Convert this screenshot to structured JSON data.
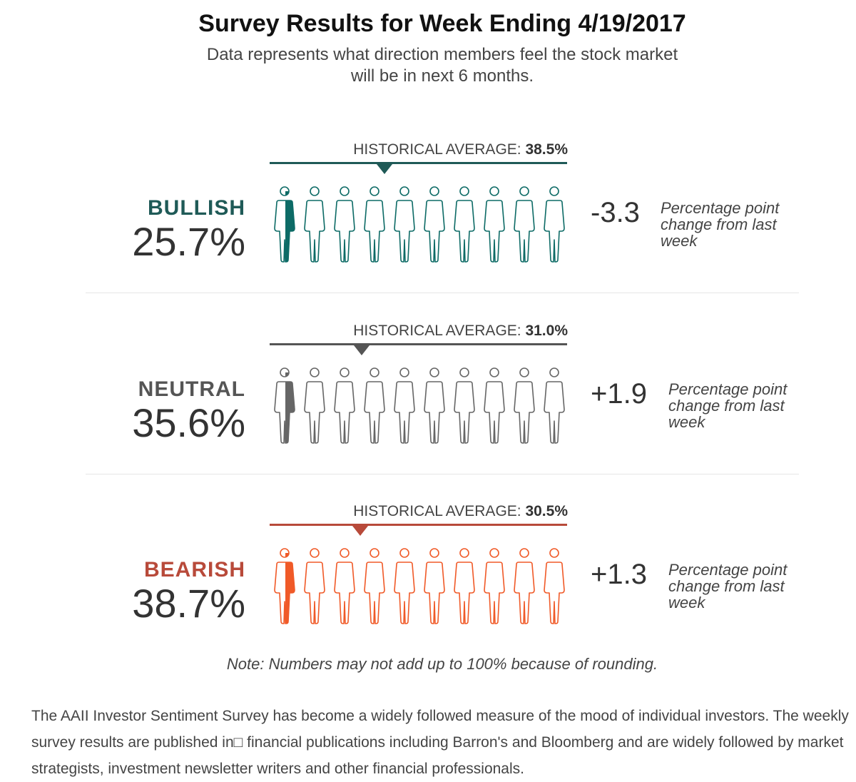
{
  "title": "Survey Results for Week Ending 4/19/2017",
  "subtitle": "Data represents what direction members feel the stock market will be in next 6 months.",
  "hist_prefix": "HISTORICAL AVERAGE: ",
  "change_note": "Percentage point change from last week",
  "note": "Note: Numbers may not add up to 100% because of rounding.",
  "description": "The AAII Investor Sentiment Survey has become a widely followed measure of the mood of individual investors. The weekly survey results are published in□ financial publications including Barron's and Bloomberg and are widely followed by market strategists, investment newsletter writers and other financial professionals.",
  "chart_data": {
    "type": "pictograph",
    "icon": "person-icon",
    "icons_per_row": 10,
    "percent_per_icon": 10,
    "rows": [
      {
        "label": "BULLISH",
        "value": 25.7,
        "value_text": "25.7%",
        "historical_average": 38.5,
        "historical_text": "38.5%",
        "change": -3.3,
        "change_text": "-3.3",
        "color": "#0d6b66",
        "line_color": "#1f5a57"
      },
      {
        "label": "NEUTRAL",
        "value": 35.6,
        "value_text": "35.6%",
        "historical_average": 31.0,
        "historical_text": "31.0%",
        "change": 1.9,
        "change_text": "+1.9",
        "color": "#666666",
        "line_color": "#555555"
      },
      {
        "label": "BEARISH",
        "value": 38.7,
        "value_text": "38.7%",
        "historical_average": 30.5,
        "historical_text": "30.5%",
        "change": 1.3,
        "change_text": "+1.3",
        "color": "#f05a28",
        "line_color": "#b84a3a",
        "label_color": "#b84a3a"
      }
    ]
  }
}
